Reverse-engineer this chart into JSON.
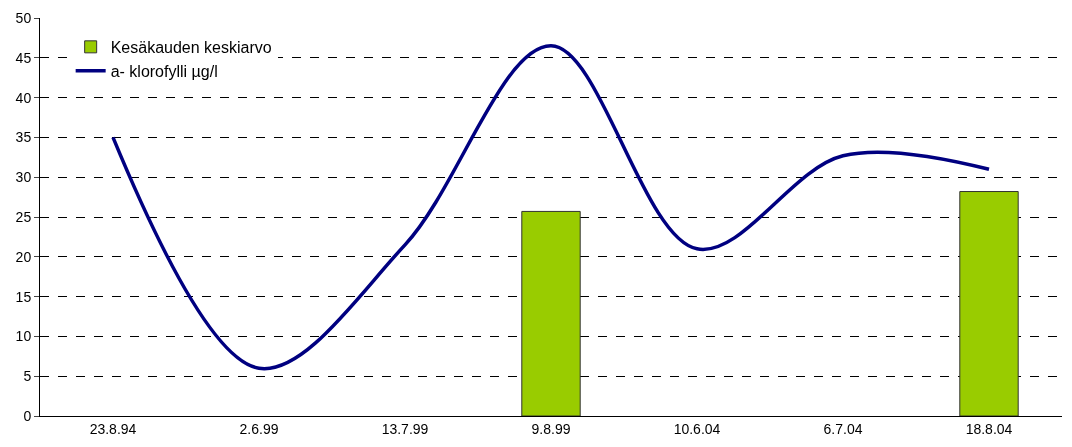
{
  "chart_data": {
    "type": "bar",
    "categories": [
      "23.8.94",
      "2.6.99",
      "13.7.99",
      "9.8.99",
      "10.6.04",
      "6.7.04",
      "18.8.04"
    ],
    "series": [
      {
        "name": "Kesäkauden keskiarvo",
        "color": "#99cc00",
        "values": [
          null,
          null,
          null,
          25.7,
          null,
          null,
          28.2
        ]
      },
      {
        "name": "a- klorofylli µg/l",
        "type": "line",
        "color": "#000080",
        "values": [
          35,
          6,
          21.5,
          46.5,
          21,
          32.7,
          31
        ]
      }
    ],
    "ylim": [
      0,
      50
    ],
    "yticks": [
      0,
      5,
      10,
      15,
      20,
      25,
      30,
      35,
      40,
      45,
      50
    ],
    "grid": "y",
    "legend": "top left",
    "marker": "none",
    "line_style": "solid"
  }
}
